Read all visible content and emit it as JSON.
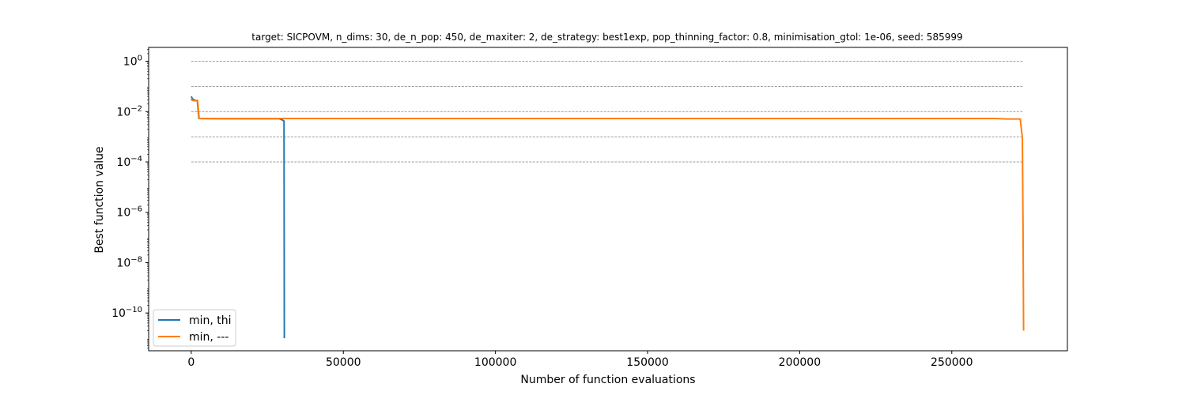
{
  "chart_data": {
    "type": "line",
    "title": "target: SICPOVM, n_dims: 30, de_n_pop: 450, de_maxiter: 2, de_strategy: best1exp, pop_thinning_factor: 0.8, minimisation_gtol: 1e-06, seed: 585999",
    "xlabel": "Number of function evaluations",
    "ylabel": "Best function value",
    "yscale": "log",
    "xlim": [
      -14000,
      288000
    ],
    "ylim_log10": [
      -11.5,
      0.55
    ],
    "xticks": [
      0,
      50000,
      100000,
      150000,
      200000,
      250000
    ],
    "xtick_labels": [
      "0",
      "50000",
      "100000",
      "150000",
      "200000",
      "250000"
    ],
    "yticks_exp": [
      0,
      -2,
      -4,
      -6,
      -8,
      -10
    ],
    "ytick_labels": [
      "10",
      "10",
      "10",
      "10",
      "10",
      "10"
    ],
    "ytick_sups": [
      "0",
      "−2",
      "−4",
      "−6",
      "−8",
      "−10"
    ],
    "reference_lines": {
      "values": [
        1,
        0.1,
        0.01,
        0.001,
        0.0001
      ],
      "x_range": [
        0,
        273500
      ],
      "color": "#808080",
      "style": "dashed"
    },
    "legend": {
      "position": "lower-left"
    },
    "series": [
      {
        "name": "min, thi",
        "color": "#1f77b4",
        "points": [
          [
            0,
            0.04
          ],
          [
            400,
            0.032
          ],
          [
            1200,
            0.028
          ],
          [
            2000,
            0.0275
          ],
          [
            2500,
            0.0053
          ],
          [
            10000,
            0.0052
          ],
          [
            29000,
            0.0052
          ],
          [
            30000,
            0.0046
          ],
          [
            30500,
            0.0042
          ],
          [
            30600,
            1e-11
          ]
        ]
      },
      {
        "name": "min, ---",
        "color": "#ff7f0e",
        "points": [
          [
            0,
            0.033
          ],
          [
            300,
            0.028
          ],
          [
            1000,
            0.027
          ],
          [
            1800,
            0.027
          ],
          [
            2100,
            0.0275
          ],
          [
            2600,
            0.0053
          ],
          [
            50000,
            0.0053
          ],
          [
            150000,
            0.0053
          ],
          [
            250000,
            0.0053
          ],
          [
            264000,
            0.0053
          ],
          [
            268000,
            0.0051
          ],
          [
            272500,
            0.0051
          ],
          [
            273200,
            0.0009
          ],
          [
            273400,
            5e-07
          ],
          [
            273600,
            2e-11
          ]
        ]
      }
    ]
  }
}
